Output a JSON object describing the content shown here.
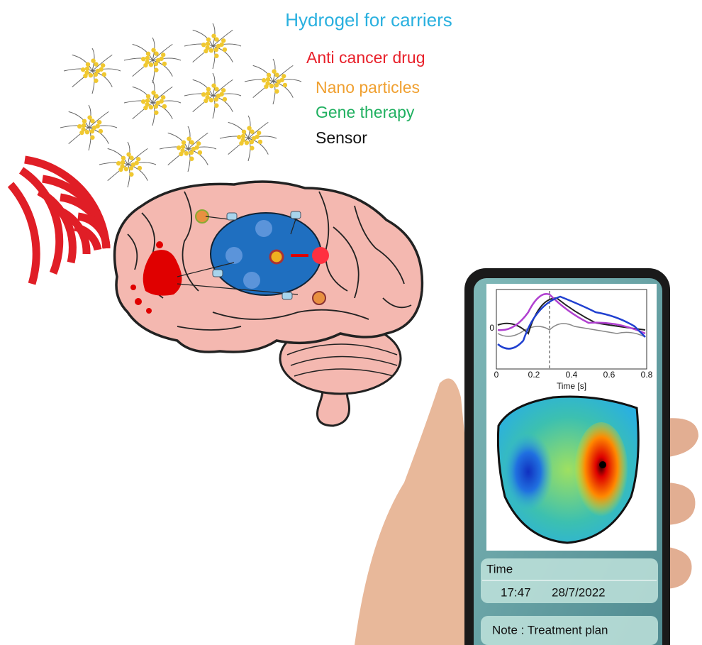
{
  "legend": {
    "title": "Hydrogel for carriers",
    "items": [
      "Anti cancer drug",
      "Nano particles",
      "Gene therapy",
      "Sensor"
    ]
  },
  "phone": {
    "plot": {
      "x_ticks": [
        "0",
        "0.2",
        "0.4",
        "0.6",
        "0.8"
      ],
      "x_label": "Time [s]",
      "y_tick": "0"
    },
    "time": {
      "label": "Time",
      "clock": "17:47",
      "date": "28/7/2022"
    },
    "note": "Note : Treatment plan"
  }
}
